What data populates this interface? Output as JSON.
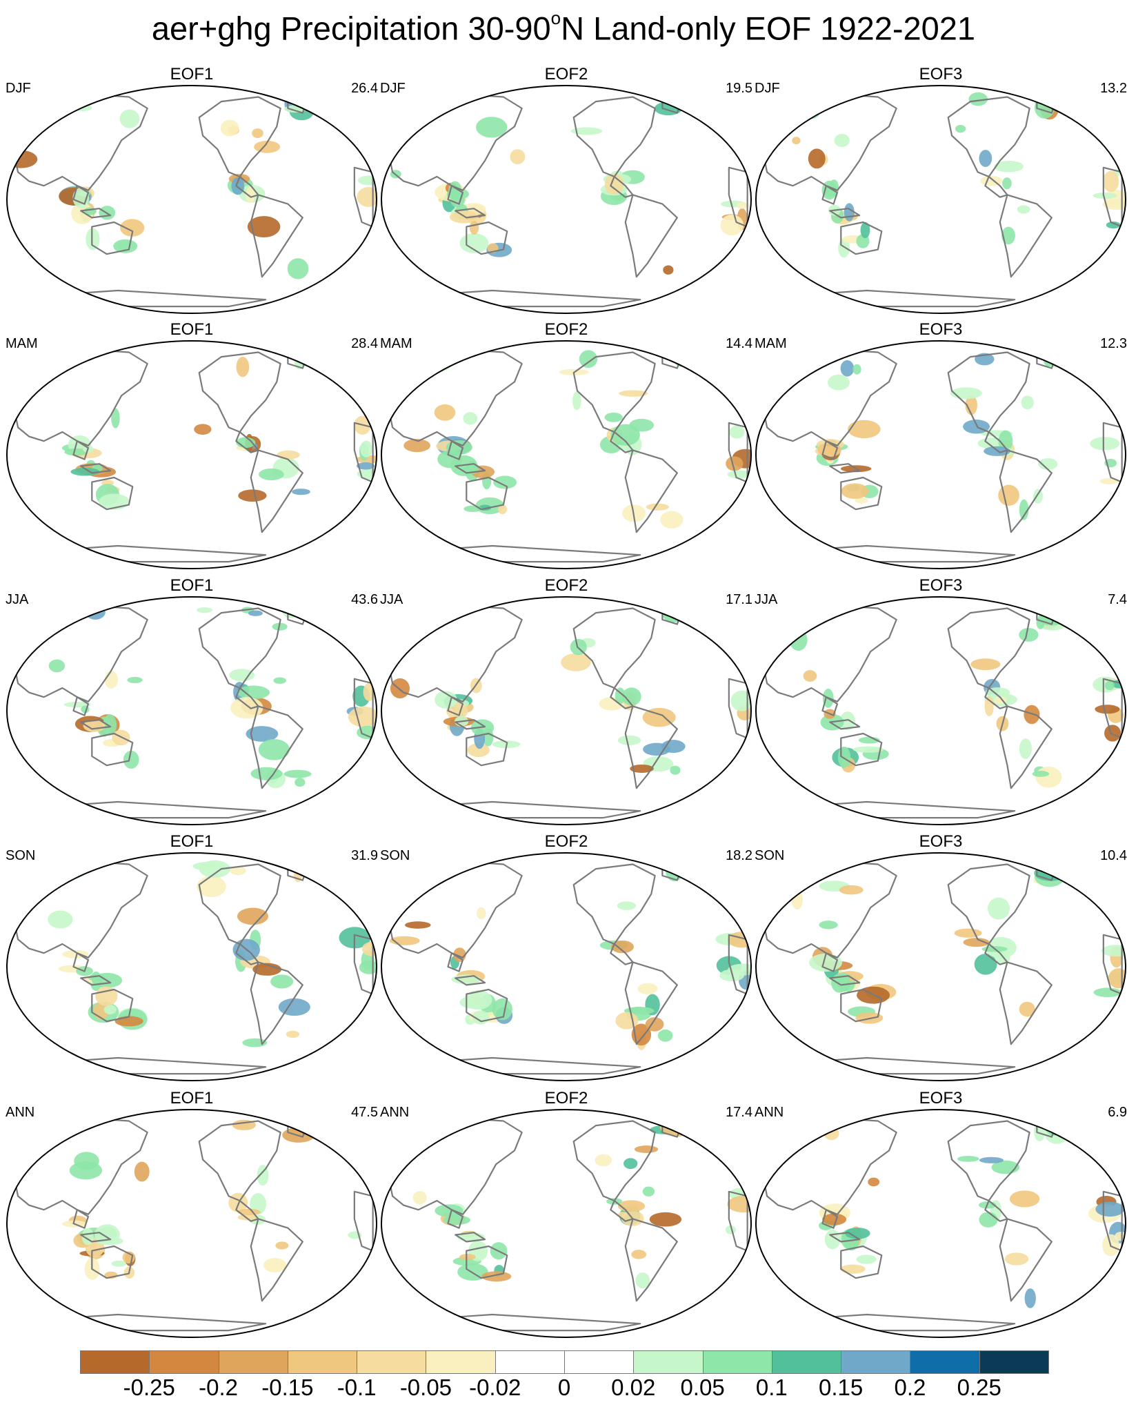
{
  "title": {
    "main": "aer+ghg Precipitation 30-90",
    "degree": "o",
    "suffix": "N Land-only EOF 1922-2021"
  },
  "seasons": [
    "DJF",
    "MAM",
    "JJA",
    "SON",
    "ANN"
  ],
  "eofs": [
    "EOF1",
    "EOF2",
    "EOF3"
  ],
  "variance_explained": {
    "DJF": [
      "26.4",
      "19.5",
      "13.2"
    ],
    "MAM": [
      "28.4",
      "14.4",
      "12.3"
    ],
    "JJA": [
      "43.6",
      "17.1",
      "7.4"
    ],
    "SON": [
      "31.9",
      "18.2",
      "10.4"
    ],
    "ANN": [
      "47.5",
      "17.4",
      "6.9"
    ]
  },
  "colorbar": {
    "colors": [
      "#b5692a",
      "#d4883f",
      "#e0a55c",
      "#f0c77e",
      "#f6dc9f",
      "#faefbe",
      "#ffffff",
      "#ffffff",
      "#c6f7cb",
      "#8ee6a8",
      "#52c19b",
      "#6fa8c9",
      "#0f6ea8",
      "#0a3a55"
    ],
    "labels": [
      "-0.25",
      "-0.2",
      "-0.15",
      "-0.1",
      "-0.05",
      "-0.02",
      "0",
      "0.02",
      "0.05",
      "0.1",
      "0.15",
      "0.2",
      "0.25"
    ]
  },
  "map_style": {
    "coast_color": "#7a7a7a",
    "land_fill": "#ffffff",
    "ocean_fill": "#ffffff",
    "border_color": "#000000"
  }
}
